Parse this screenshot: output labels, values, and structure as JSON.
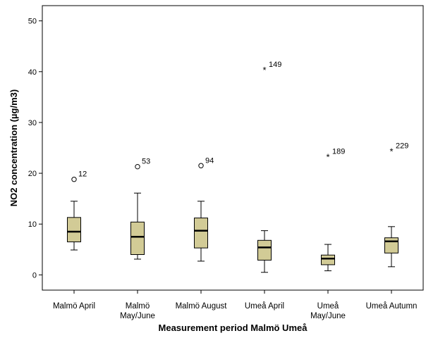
{
  "chart_data": {
    "type": "box",
    "title": "",
    "xlabel": "Measurement period Malmö Umeå",
    "ylabel": "NO2 concentration (µg/m3)",
    "ylim": [
      -3,
      53
    ],
    "yticks": [
      0,
      10,
      20,
      30,
      40,
      50
    ],
    "categories": [
      [
        "Malmö April"
      ],
      [
        "Malmö",
        "May/June"
      ],
      [
        "Malmö August"
      ],
      [
        "Umeå April"
      ],
      [
        "Umeå",
        "May/June"
      ],
      [
        "Umeå Autumn"
      ]
    ],
    "boxes": [
      {
        "whisker_low": 4.9,
        "q1": 6.5,
        "median": 8.5,
        "q3": 11.3,
        "whisker_high": 14.5,
        "outliers": [
          {
            "value": 18.8,
            "label": "12",
            "marker": "circle"
          }
        ]
      },
      {
        "whisker_low": 3.1,
        "q1": 4.0,
        "median": 7.5,
        "q3": 10.4,
        "whisker_high": 16.1,
        "outliers": [
          {
            "value": 21.3,
            "label": "53",
            "marker": "circle"
          }
        ]
      },
      {
        "whisker_low": 2.7,
        "q1": 5.3,
        "median": 8.7,
        "q3": 11.2,
        "whisker_high": 14.5,
        "outliers": [
          {
            "value": 21.5,
            "label": "94",
            "marker": "circle"
          }
        ]
      },
      {
        "whisker_low": 0.5,
        "q1": 2.9,
        "median": 5.4,
        "q3": 6.8,
        "whisker_high": 8.7,
        "outliers": [
          {
            "value": 40.4,
            "label": "149",
            "marker": "star"
          }
        ]
      },
      {
        "whisker_low": 0.8,
        "q1": 2.0,
        "median": 3.2,
        "q3": 3.9,
        "whisker_high": 6.0,
        "outliers": [
          {
            "value": 23.3,
            "label": "189",
            "marker": "star"
          }
        ]
      },
      {
        "whisker_low": 1.6,
        "q1": 4.3,
        "median": 6.6,
        "q3": 7.3,
        "whisker_high": 9.5,
        "outliers": [
          {
            "value": 24.4,
            "label": "229",
            "marker": "star"
          }
        ]
      }
    ],
    "grid": false,
    "colors": {
      "box_fill": "#d2cb96",
      "stroke": "#000000",
      "background": "#ffffff"
    }
  }
}
